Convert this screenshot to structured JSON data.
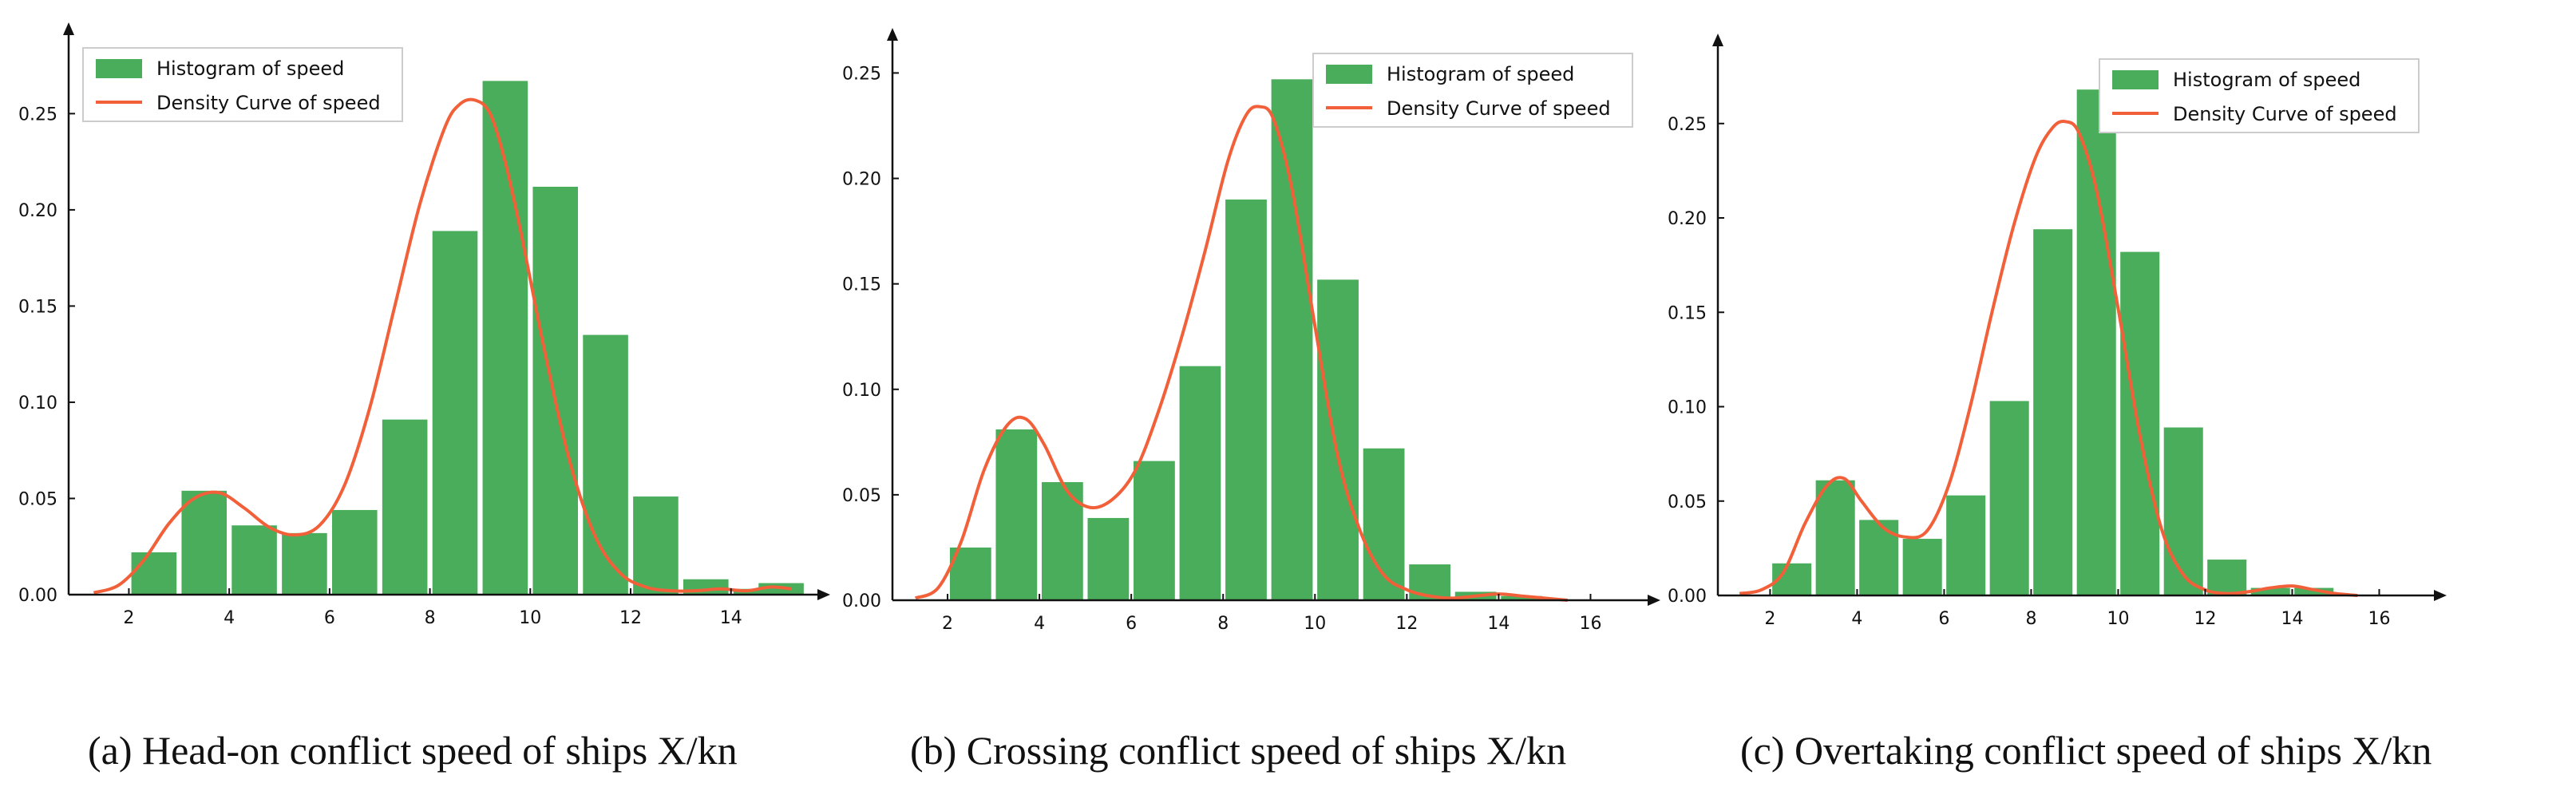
{
  "colors": {
    "bar": "#4aad5b",
    "curve": "#f2603a",
    "axis": "#111111"
  },
  "legend_labels": {
    "histogram": "Histogram of speed",
    "density": "Density Curve of speed"
  },
  "chart_data": [
    {
      "type": "bar",
      "caption": "(a) Head-on conflict speed of ships X/kn",
      "legend_position": "top-left",
      "grid": false,
      "xlim": [
        0.8,
        15.5
      ],
      "ylim": [
        0,
        0.285
      ],
      "xticks": [
        2,
        4,
        6,
        8,
        10,
        12,
        14
      ],
      "yticks": [
        "0.00",
        "0.05",
        "0.10",
        "0.15",
        "0.20",
        "0.25"
      ],
      "histogram": {
        "centers": [
          2.5,
          3.5,
          4.5,
          5.5,
          6.5,
          7.5,
          8.5,
          9.5,
          10.5,
          11.5,
          12.5,
          13.5,
          14.5,
          15.0
        ],
        "values": [
          0.022,
          0.054,
          0.036,
          0.032,
          0.044,
          0.091,
          0.189,
          0.267,
          0.212,
          0.135,
          0.051,
          0.008,
          0.003,
          0.006
        ]
      },
      "density": {
        "x": [
          1.3,
          1.8,
          2.3,
          2.8,
          3.3,
          3.8,
          4.3,
          4.8,
          5.3,
          5.8,
          6.3,
          6.8,
          7.3,
          7.8,
          8.3,
          8.6,
          8.9,
          9.2,
          9.5,
          9.8,
          10.3,
          10.8,
          11.3,
          11.8,
          12.3,
          12.8,
          13.3,
          13.8,
          14.3,
          14.8,
          15.2
        ],
        "y": [
          0.001,
          0.005,
          0.018,
          0.037,
          0.05,
          0.053,
          0.045,
          0.035,
          0.031,
          0.036,
          0.057,
          0.097,
          0.15,
          0.203,
          0.243,
          0.255,
          0.257,
          0.25,
          0.225,
          0.19,
          0.125,
          0.068,
          0.03,
          0.011,
          0.004,
          0.002,
          0.002,
          0.003,
          0.002,
          0.004,
          0.003
        ]
      }
    },
    {
      "type": "bar",
      "caption": "(b) Crossing conflict speed of ships X/kn",
      "legend_position": "top-right",
      "grid": false,
      "xlim": [
        0.8,
        17.0
      ],
      "ylim": [
        0,
        0.26
      ],
      "xticks": [
        2,
        4,
        6,
        8,
        10,
        12,
        14,
        16
      ],
      "yticks": [
        "0.00",
        "0.05",
        "0.10",
        "0.15",
        "0.20",
        "0.25"
      ],
      "histogram": {
        "centers": [
          2.5,
          3.5,
          4.5,
          5.5,
          6.5,
          7.5,
          8.5,
          9.5,
          10.5,
          11.5,
          12.5,
          13.5,
          14.5
        ],
        "values": [
          0.025,
          0.081,
          0.056,
          0.039,
          0.066,
          0.111,
          0.19,
          0.247,
          0.152,
          0.072,
          0.017,
          0.004,
          0.002
        ]
      },
      "density": {
        "x": [
          1.3,
          1.8,
          2.3,
          2.8,
          3.3,
          3.7,
          4.1,
          4.6,
          5.1,
          5.6,
          6.1,
          6.6,
          7.1,
          7.6,
          8.1,
          8.5,
          8.8,
          9.1,
          9.5,
          10.0,
          10.5,
          11.0,
          11.5,
          12.0,
          12.5,
          13.0,
          13.5,
          14.0,
          14.5,
          15.0,
          15.5
        ],
        "y": [
          0.001,
          0.006,
          0.028,
          0.062,
          0.083,
          0.086,
          0.074,
          0.052,
          0.044,
          0.048,
          0.062,
          0.09,
          0.125,
          0.165,
          0.208,
          0.23,
          0.234,
          0.228,
          0.195,
          0.13,
          0.068,
          0.032,
          0.012,
          0.005,
          0.002,
          0.001,
          0.002,
          0.003,
          0.002,
          0.001,
          0.0
        ]
      }
    },
    {
      "type": "bar",
      "caption": "(c) Overtaking conflict speed of ships X/kn",
      "legend_position": "top-right",
      "grid": false,
      "xlim": [
        0.8,
        17.0
      ],
      "ylim": [
        0,
        0.285
      ],
      "xticks": [
        2,
        4,
        6,
        8,
        10,
        12,
        14,
        16
      ],
      "yticks": [
        "0.00",
        "0.05",
        "0.10",
        "0.15",
        "0.20",
        "0.25"
      ],
      "histogram": {
        "centers": [
          2.5,
          3.5,
          4.5,
          5.5,
          6.5,
          7.5,
          8.5,
          9.5,
          10.5,
          11.5,
          12.5,
          13.5,
          14.5
        ],
        "values": [
          0.017,
          0.061,
          0.04,
          0.03,
          0.053,
          0.103,
          0.194,
          0.268,
          0.182,
          0.089,
          0.019,
          0.004,
          0.004
        ]
      },
      "density": {
        "x": [
          1.3,
          1.8,
          2.3,
          2.8,
          3.3,
          3.7,
          4.1,
          4.6,
          5.1,
          5.6,
          6.1,
          6.6,
          7.1,
          7.6,
          8.1,
          8.5,
          8.8,
          9.1,
          9.5,
          10.0,
          10.5,
          11.0,
          11.5,
          12.0,
          12.5,
          13.0,
          13.5,
          14.0,
          14.5,
          15.0,
          15.5
        ],
        "y": [
          0.001,
          0.003,
          0.012,
          0.038,
          0.058,
          0.062,
          0.05,
          0.036,
          0.031,
          0.034,
          0.058,
          0.1,
          0.15,
          0.196,
          0.232,
          0.248,
          0.251,
          0.245,
          0.215,
          0.152,
          0.085,
          0.035,
          0.011,
          0.003,
          0.001,
          0.002,
          0.004,
          0.005,
          0.003,
          0.001,
          0.0
        ]
      }
    }
  ]
}
